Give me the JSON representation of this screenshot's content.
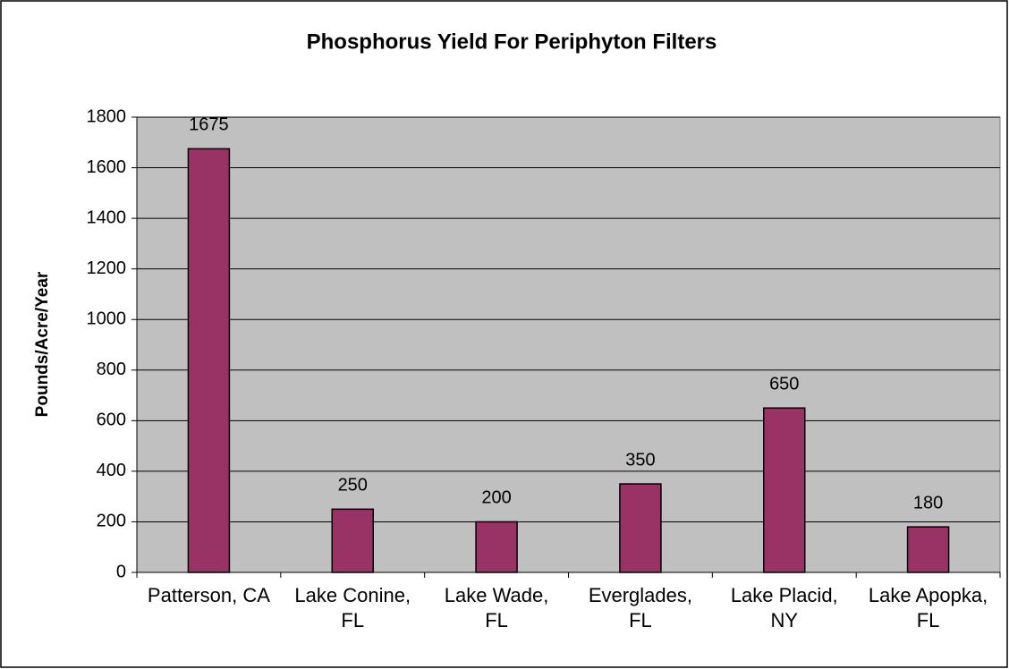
{
  "chart_data": {
    "type": "bar",
    "title": "Phosphorus Yield For Periphyton Filters",
    "y_label": "Pounds/Acre/Year",
    "categories": [
      "Patterson, CA",
      "Lake Conine, FL",
      "Lake Wade, FL",
      "Everglades, FL",
      "Lake Placid, NY",
      "Lake Apopka, FL"
    ],
    "values": [
      1675,
      250,
      200,
      350,
      650,
      180
    ],
    "color": "#993366",
    "plot_background": "#c0c0c0",
    "ylim": [
      0,
      1800
    ],
    "yticks": [
      0,
      200,
      400,
      600,
      800,
      1000,
      1200,
      1400,
      1600,
      1800
    ],
    "grid": true
  }
}
